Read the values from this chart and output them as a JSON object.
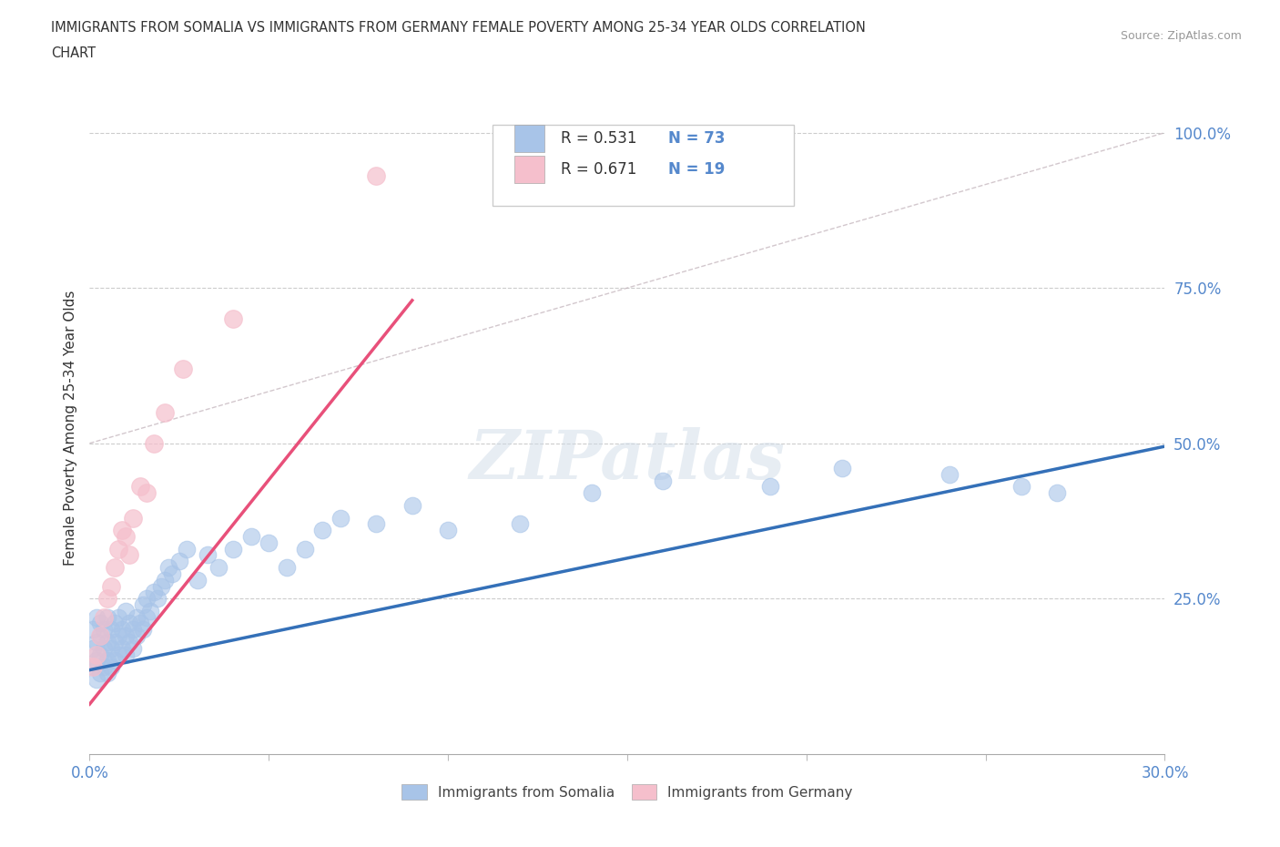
{
  "title_line1": "IMMIGRANTS FROM SOMALIA VS IMMIGRANTS FROM GERMANY FEMALE POVERTY AMONG 25-34 YEAR OLDS CORRELATION",
  "title_line2": "CHART",
  "source": "Source: ZipAtlas.com",
  "R_somalia": 0.531,
  "N_somalia": 73,
  "R_germany": 0.671,
  "N_germany": 19,
  "color_somalia": "#a8c4e8",
  "color_germany": "#f5bfcc",
  "line_color_somalia": "#3470b8",
  "line_color_germany": "#e8507a",
  "ref_line_color": "#c0b0b8",
  "tick_color": "#5588cc",
  "watermark_color": "#d0dce8",
  "somalia_x": [
    0.001,
    0.001,
    0.001,
    0.002,
    0.002,
    0.002,
    0.002,
    0.003,
    0.003,
    0.003,
    0.003,
    0.004,
    0.004,
    0.004,
    0.005,
    0.005,
    0.005,
    0.005,
    0.006,
    0.006,
    0.006,
    0.007,
    0.007,
    0.007,
    0.008,
    0.008,
    0.008,
    0.009,
    0.009,
    0.01,
    0.01,
    0.01,
    0.011,
    0.011,
    0.012,
    0.012,
    0.013,
    0.013,
    0.014,
    0.015,
    0.015,
    0.016,
    0.016,
    0.017,
    0.018,
    0.019,
    0.02,
    0.021,
    0.022,
    0.023,
    0.025,
    0.027,
    0.03,
    0.033,
    0.036,
    0.04,
    0.045,
    0.05,
    0.055,
    0.06,
    0.065,
    0.07,
    0.08,
    0.09,
    0.1,
    0.12,
    0.14,
    0.16,
    0.19,
    0.21,
    0.24,
    0.26,
    0.27
  ],
  "somalia_y": [
    0.14,
    0.17,
    0.2,
    0.12,
    0.15,
    0.18,
    0.22,
    0.13,
    0.16,
    0.19,
    0.21,
    0.14,
    0.17,
    0.2,
    0.13,
    0.15,
    0.18,
    0.22,
    0.14,
    0.17,
    0.2,
    0.15,
    0.18,
    0.21,
    0.16,
    0.19,
    0.22,
    0.17,
    0.2,
    0.16,
    0.19,
    0.23,
    0.18,
    0.21,
    0.17,
    0.2,
    0.19,
    0.22,
    0.21,
    0.2,
    0.24,
    0.22,
    0.25,
    0.23,
    0.26,
    0.25,
    0.27,
    0.28,
    0.3,
    0.29,
    0.31,
    0.33,
    0.28,
    0.32,
    0.3,
    0.33,
    0.35,
    0.34,
    0.3,
    0.33,
    0.36,
    0.38,
    0.37,
    0.4,
    0.36,
    0.37,
    0.42,
    0.44,
    0.43,
    0.46,
    0.45,
    0.43,
    0.42
  ],
  "germany_x": [
    0.001,
    0.002,
    0.003,
    0.004,
    0.005,
    0.006,
    0.007,
    0.008,
    0.009,
    0.01,
    0.011,
    0.012,
    0.014,
    0.016,
    0.018,
    0.021,
    0.026,
    0.04,
    0.08
  ],
  "germany_y": [
    0.14,
    0.16,
    0.19,
    0.22,
    0.25,
    0.27,
    0.3,
    0.33,
    0.36,
    0.35,
    0.32,
    0.38,
    0.43,
    0.42,
    0.5,
    0.55,
    0.62,
    0.7,
    0.93
  ],
  "xlim": [
    0.0,
    0.3
  ],
  "ylim": [
    0.0,
    1.05
  ],
  "yticks": [
    0.0,
    0.25,
    0.5,
    0.75,
    1.0
  ],
  "ytick_labels": [
    "",
    "25.0%",
    "50.0%",
    "75.0%",
    "100.0%"
  ],
  "xticks": [
    0.0,
    0.05,
    0.1,
    0.15,
    0.2,
    0.25,
    0.3
  ],
  "xtick_labels": [
    "0.0%",
    "",
    "",
    "",
    "",
    "",
    "30.0%"
  ],
  "reg_somalia": [
    0.0,
    0.3,
    0.135,
    0.495
  ],
  "reg_germany": [
    0.0,
    0.09,
    0.08,
    0.73
  ]
}
